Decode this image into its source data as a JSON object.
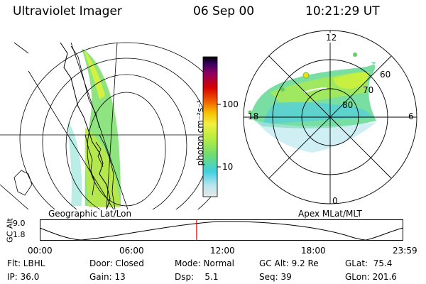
{
  "header": {
    "instrument": "Ultraviolet Imager",
    "date": "06 Sep 00",
    "time": "10:21:29 UT"
  },
  "left_panel": {
    "caption": "Geographic Lat/Lon"
  },
  "right_panel": {
    "caption": "Apex MLat/MLT",
    "mlt_labels": {
      "top": "12",
      "left": "18",
      "right": "6",
      "bottom": "0"
    },
    "lat_labels": [
      "60",
      "70",
      "80"
    ]
  },
  "colorbar": {
    "unit_label": "photon cm⁻²s⁻¹",
    "ticks": [
      {
        "label": "100",
        "value": 100
      },
      {
        "label": "10",
        "value": 10
      }
    ],
    "scale": "log",
    "colors": [
      "#e8e8e8",
      "#b8e6ec",
      "#40d0e0",
      "#80e070",
      "#c8f040",
      "#f0f040",
      "#f8c000",
      "#f06000",
      "#d80000",
      "#900060",
      "#3a0060",
      "#000000"
    ]
  },
  "timeline": {
    "y_label": "GC Alt",
    "y_ticks": [
      "9.0",
      "1.8"
    ],
    "x_ticks": [
      "00:00",
      "06:00",
      "12:00",
      "18:00",
      "23:59"
    ],
    "current_time_fraction": 0.4315,
    "marker_color": "#e00000"
  },
  "status": {
    "row1": [
      {
        "key": "flt",
        "text": "Flt: LBHL"
      },
      {
        "key": "door",
        "text": "Door: Closed"
      },
      {
        "key": "mode",
        "text": "Mode: Normal"
      },
      {
        "key": "gcalt",
        "text": "GC Alt: 9.2 Re"
      },
      {
        "key": "glat",
        "text": "GLat:  75.4"
      }
    ],
    "row2": [
      {
        "key": "ip",
        "text": "IP: 36.0"
      },
      {
        "key": "gain",
        "text": "Gain: 13"
      },
      {
        "key": "dsp",
        "text": "Dsp:    5.1"
      },
      {
        "key": "seq",
        "text": "Seq: 39"
      },
      {
        "key": "glon",
        "text": "GLon: 201.6"
      }
    ]
  }
}
